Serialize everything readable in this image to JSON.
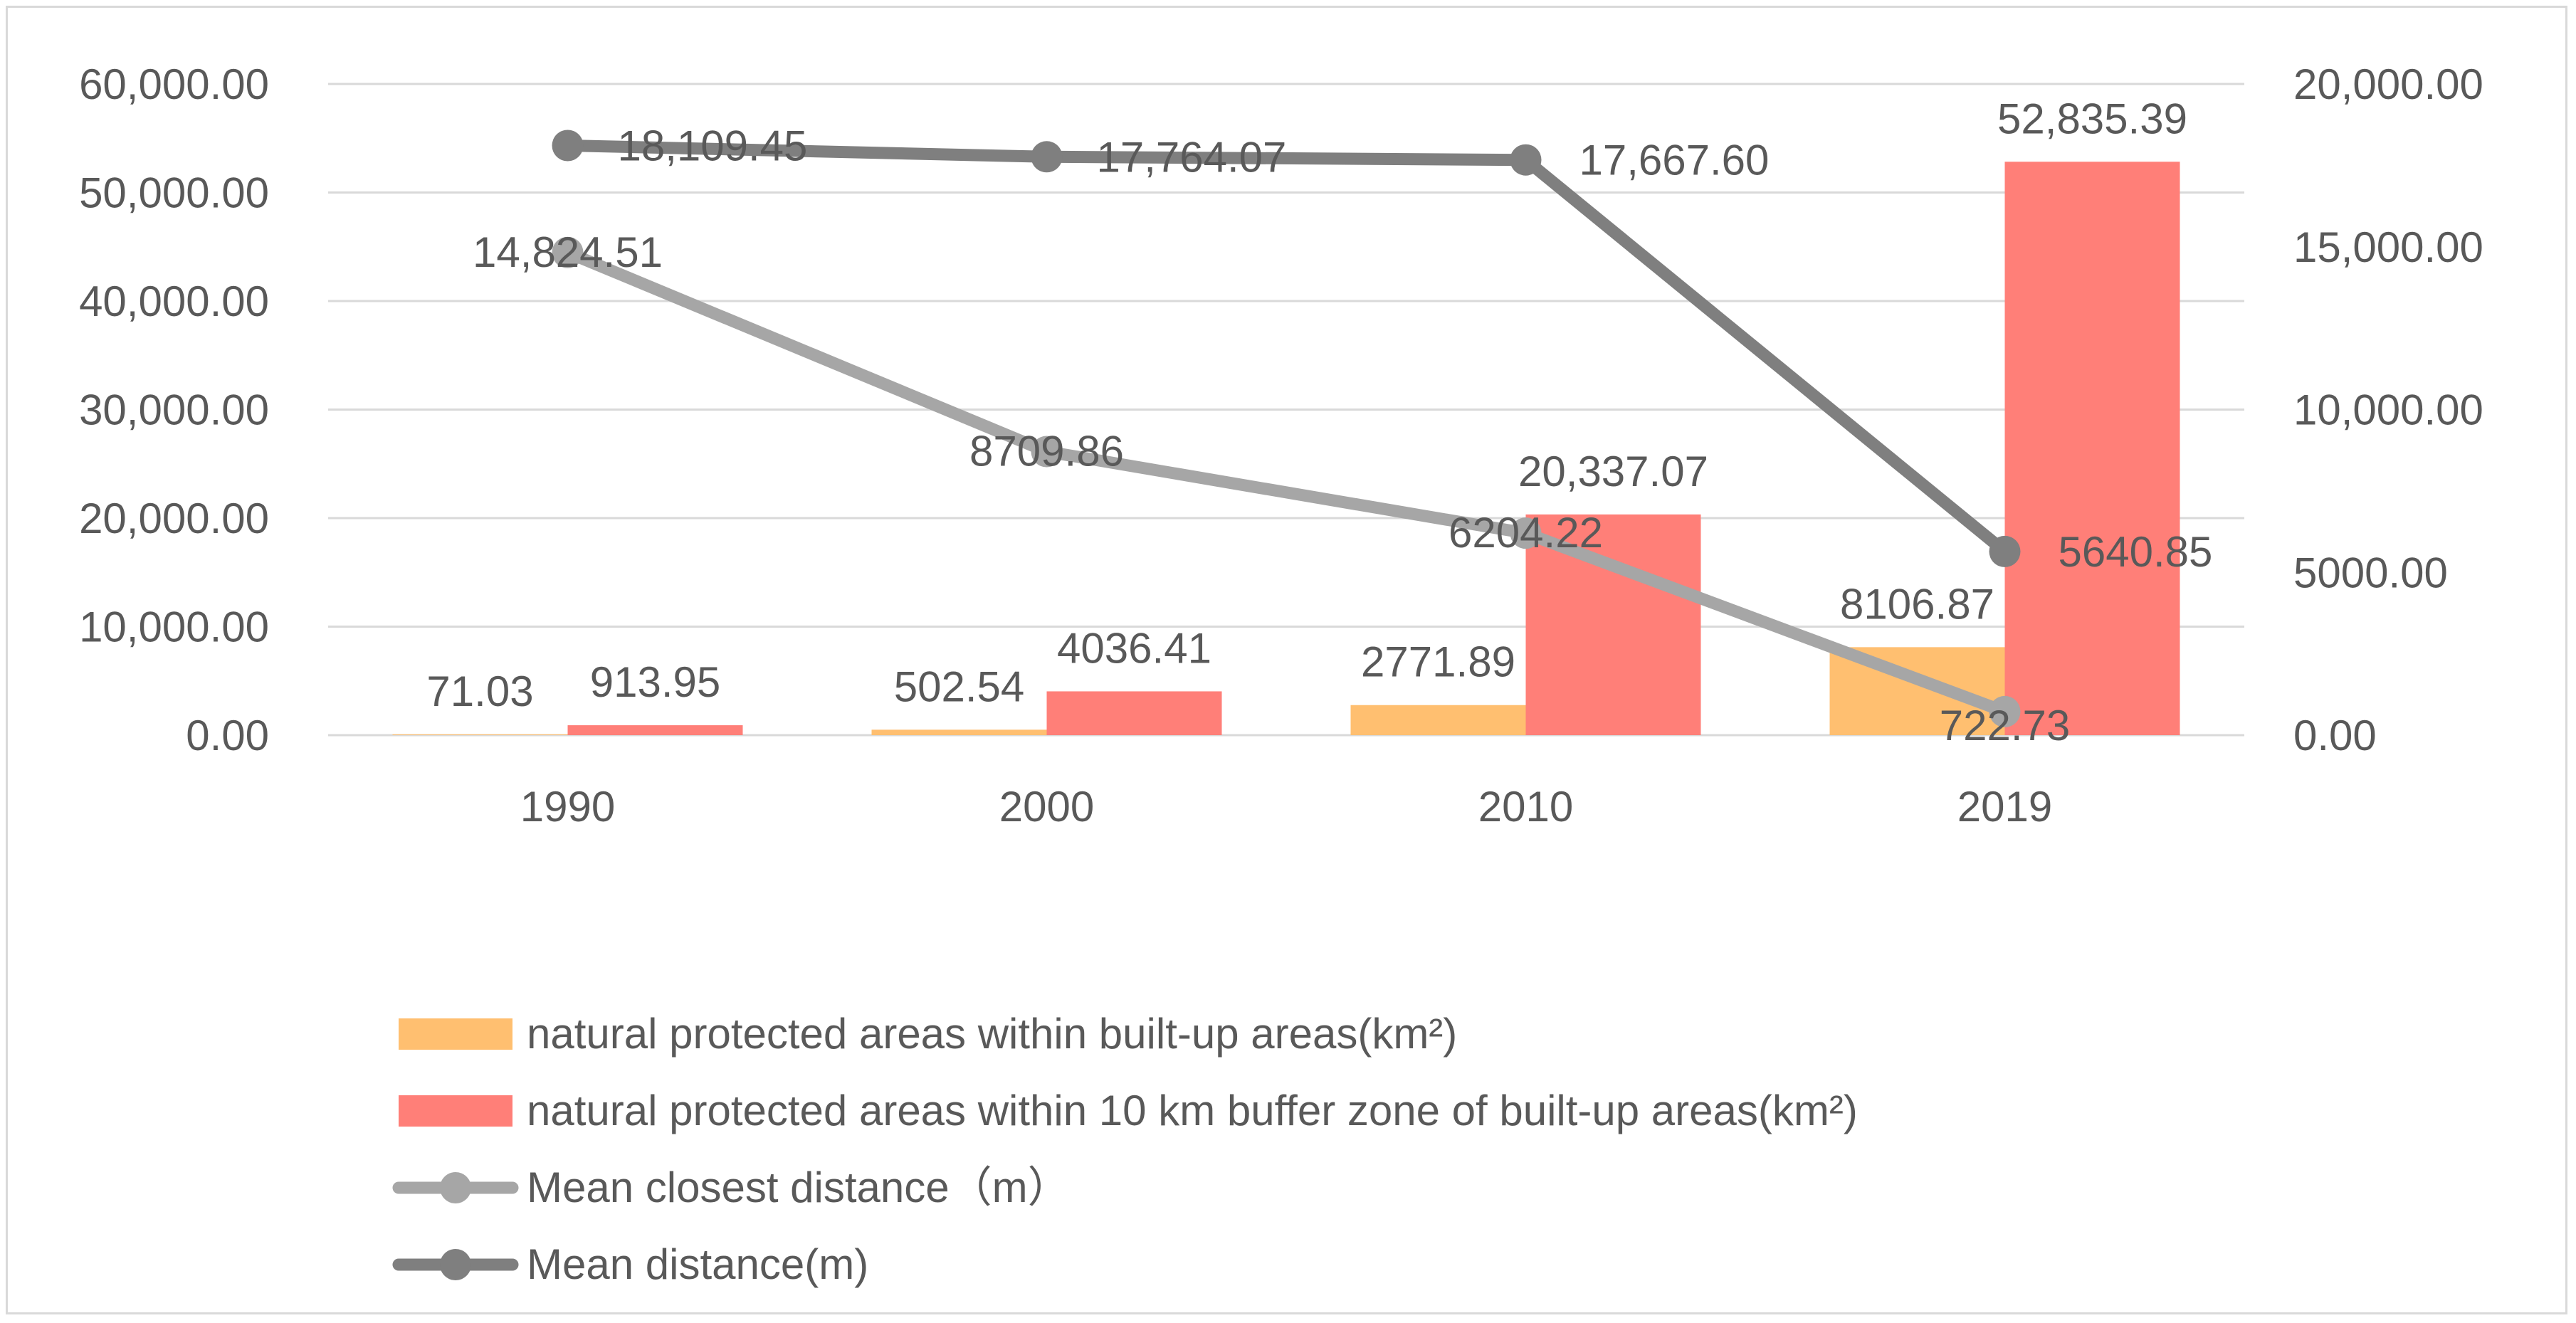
{
  "chart_data": {
    "type": "bar",
    "categories": [
      "1990",
      "2000",
      "2010",
      "2019"
    ],
    "y_left": {
      "ticks": [
        "0.00",
        "10,000.00",
        "20,000.00",
        "30,000.00",
        "40,000.00",
        "50,000.00",
        "60,000.00"
      ],
      "ylim": [
        0,
        60000
      ]
    },
    "y_right": {
      "ticks": [
        "0.00",
        "5000.00",
        "10,000.00",
        "15,000.00",
        "20,000.00"
      ],
      "ylim": [
        0,
        20000
      ]
    },
    "grid": true,
    "legend_position": "bottom",
    "series": [
      {
        "name": "natural protected areas within built-up areas(km²)",
        "kind": "bar",
        "axis": "left",
        "color": "#FFBF70",
        "values": [
          71.03,
          502.54,
          2771.89,
          8106.87
        ],
        "labels": [
          "71.03",
          "502.54",
          "2771.89",
          "8106.87"
        ]
      },
      {
        "name": "natural protected areas within 10 km buffer zone of built-up areas(km²)",
        "kind": "bar",
        "axis": "left",
        "color": "#FF7F78",
        "values": [
          913.95,
          4036.41,
          20337.07,
          52835.39
        ],
        "labels": [
          "913.95",
          "4036.41",
          "20,337.07",
          "52,835.39"
        ]
      },
      {
        "name": "Mean closest distance（m）",
        "kind": "line",
        "axis": "right",
        "color": "#A6A6A6",
        "values": [
          14824.51,
          8709.86,
          6204.22,
          722.73
        ],
        "labels": [
          "14,824.51",
          "8709.86",
          "6204.22",
          "722.73"
        ]
      },
      {
        "name": "Mean distance(m)",
        "kind": "line",
        "axis": "right",
        "color": "#7F7F7F",
        "values": [
          18109.45,
          17764.07,
          17667.6,
          5640.85
        ],
        "labels": [
          "18,109.45",
          "17,764.07",
          "17,667.60",
          "5640.85"
        ]
      }
    ]
  }
}
